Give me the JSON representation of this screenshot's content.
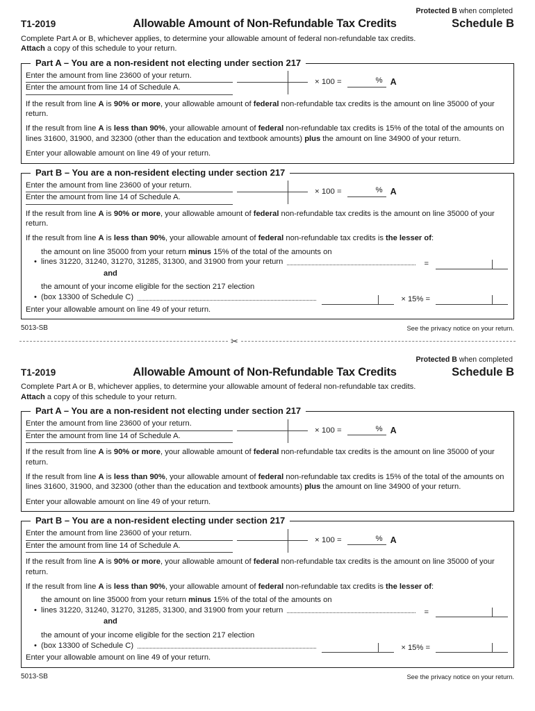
{
  "header": {
    "protected_label": "Protected B",
    "protected_suffix": " when completed",
    "form_code": "T1-2019",
    "title": "Allowable Amount of Non-Refundable Tax Credits",
    "schedule": "Schedule B"
  },
  "intro": {
    "line1": [
      {
        "t": "Complete Part A or B, whichever applies, to determine your allowable amount of federal non-refundable tax credits."
      }
    ],
    "line2": [
      {
        "t": "Attach",
        "b": true
      },
      {
        "t": " a copy of this schedule to your return."
      }
    ]
  },
  "ratio": {
    "numerator": "Enter the amount from line 23600 of your return.",
    "denominator": "Enter the amount from line 14 of Schedule A.",
    "times_100": "× 100 =",
    "percent_sign": "%",
    "result_label": "A"
  },
  "shared": {
    "para_90": [
      {
        "t": "If the result from line "
      },
      {
        "t": "A",
        "b": true
      },
      {
        "t": " is "
      },
      {
        "t": "90% or more",
        "b": true
      },
      {
        "t": ", your allowable amount of "
      },
      {
        "t": "federal",
        "b": true
      },
      {
        "t": " non-refundable tax credits is the amount on line 35000 of your return."
      }
    ],
    "closing": "Enter your allowable amount on line 49 of your return."
  },
  "part_a": {
    "heading": "Part A – You are a non-resident not electing under section 217",
    "para_less": [
      {
        "t": "If the result from line "
      },
      {
        "t": "A",
        "b": true
      },
      {
        "t": " is "
      },
      {
        "t": "less than 90%",
        "b": true
      },
      {
        "t": ", your allowable amount of "
      },
      {
        "t": "federal",
        "b": true
      },
      {
        "t": " non-refundable tax credits is 15% of the total of the amounts on lines 31600, 31900, and 32300 (other than the education and textbook amounts) "
      },
      {
        "t": "plus",
        "b": true
      },
      {
        "t": " the amount on line 34900 of your return."
      }
    ]
  },
  "part_b": {
    "heading": "Part B – You are a non-resident electing under section 217",
    "para_lesser": [
      {
        "t": "If the result from line "
      },
      {
        "t": "A",
        "b": true
      },
      {
        "t": " is "
      },
      {
        "t": "less than 90%",
        "b": true
      },
      {
        "t": ", your allowable amount of "
      },
      {
        "t": "federal",
        "b": true
      },
      {
        "t": " non-refundable tax credits is "
      },
      {
        "t": "the lesser of",
        "b": true
      },
      {
        "t": ":"
      }
    ],
    "bullet_marker": "•",
    "bullet1_line1": [
      {
        "t": "the amount on line 35000 from your return "
      },
      {
        "t": "minus",
        "b": true
      },
      {
        "t": " 15% of the total of the amounts on"
      }
    ],
    "bullet1_line2": "lines 31220, 31240, 31270, 31285, 31300, and 31900 from your return",
    "equals_sign": "=",
    "and_label": "and",
    "bullet2_line1": "the amount of your income eligible for the section 217 election",
    "bullet2_line2": "(box 13300 of Schedule C)",
    "times_15": "× 15% ="
  },
  "footer": {
    "form_number": "5013-SB",
    "privacy": "See the privacy notice on your return."
  },
  "icons": {
    "scissors": "✂"
  },
  "colors": {
    "ink": "#1a1a1a",
    "field_line": "#3f3f3f"
  }
}
